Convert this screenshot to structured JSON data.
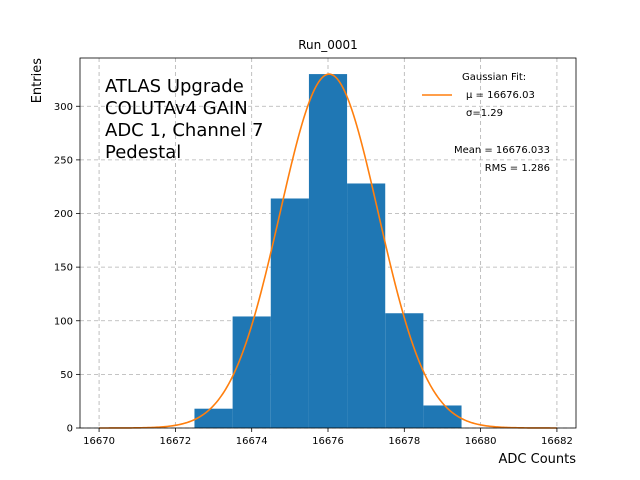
{
  "chart_data": {
    "type": "bar",
    "title": "Run_0001",
    "xlabel": "ADC Counts",
    "ylabel": "Entries",
    "xlim": [
      16669.5,
      16682.5
    ],
    "ylim": [
      0,
      345
    ],
    "grid": true,
    "xticks": [
      16670,
      16672,
      16674,
      16676,
      16678,
      16680,
      16682
    ],
    "yticks": [
      0,
      50,
      100,
      150,
      200,
      250,
      300
    ],
    "bins": [
      {
        "lo": 16672.5,
        "hi": 16673.5,
        "count": 18
      },
      {
        "lo": 16673.5,
        "hi": 16674.5,
        "count": 104
      },
      {
        "lo": 16674.5,
        "hi": 16675.5,
        "count": 214
      },
      {
        "lo": 16675.5,
        "hi": 16676.5,
        "count": 330
      },
      {
        "lo": 16676.5,
        "hi": 16677.5,
        "count": 228
      },
      {
        "lo": 16677.5,
        "hi": 16678.5,
        "count": 107
      },
      {
        "lo": 16678.5,
        "hi": 16679.5,
        "count": 21
      }
    ],
    "fit": {
      "mu": 16676.03,
      "sigma": 1.29,
      "amplitude": 330,
      "x_range": [
        16670,
        16682
      ]
    },
    "annotation_lines": [
      "ATLAS Upgrade",
      "COLUTAv4 GAIN",
      "ADC 1, Channel 7",
      "Pedestal"
    ],
    "legend": {
      "placement": "top-right",
      "title": "Gaussian Fit:",
      "mu_text": "μ = 16676.03",
      "sigma_text": "σ=1.29"
    },
    "stats": {
      "mean_text": "Mean = 16676.033",
      "rms_text": "RMS = 1.286"
    },
    "colors": {
      "bar": "#1f77b4",
      "fit": "#ff7f0e"
    }
  }
}
